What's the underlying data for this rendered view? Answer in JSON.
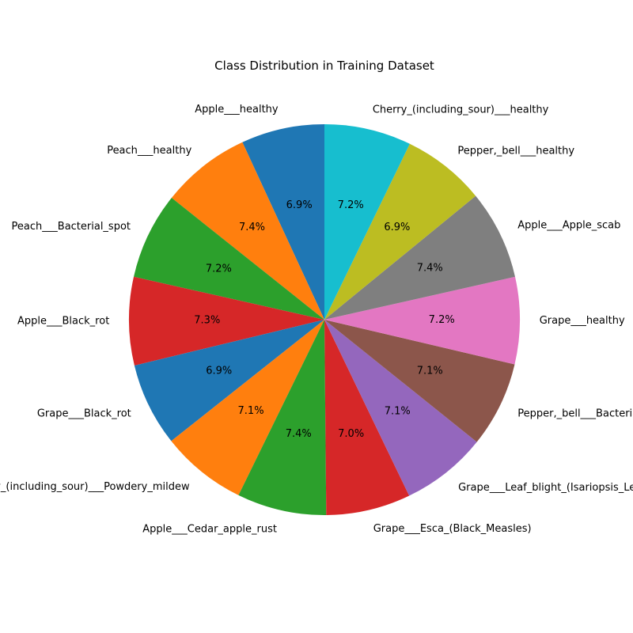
{
  "chart_data": {
    "type": "pie",
    "title": "Class Distribution in Training Dataset",
    "start_angle_deg": 90,
    "direction": "counterclockwise",
    "slices": [
      {
        "label": "Apple___healthy",
        "value": 6.9,
        "pct_text": "6.9%",
        "color": "#1f77b4"
      },
      {
        "label": "Peach___healthy",
        "value": 7.4,
        "pct_text": "7.4%",
        "color": "#ff7f0e"
      },
      {
        "label": "Peach___Bacterial_spot",
        "value": 7.2,
        "pct_text": "7.2%",
        "color": "#2ca02c"
      },
      {
        "label": "Apple___Black_rot",
        "value": 7.3,
        "pct_text": "7.3%",
        "color": "#d62728"
      },
      {
        "label": "Grape___Black_rot",
        "value": 6.9,
        "pct_text": "6.9%",
        "color": "#1f77b4"
      },
      {
        "label": "Cherry_(including_sour)___Powdery_mildew",
        "value": 7.1,
        "pct_text": "7.1%",
        "color": "#ff7f0e"
      },
      {
        "label": "Apple___Cedar_apple_rust",
        "value": 7.4,
        "pct_text": "7.4%",
        "color": "#2ca02c"
      },
      {
        "label": "Grape___Esca_(Black_Measles)",
        "value": 7.0,
        "pct_text": "7.0%",
        "color": "#d62728"
      },
      {
        "label": "Grape___Leaf_blight_(Isariopsis_Leaf_Spot)",
        "value": 7.1,
        "pct_text": "7.1%",
        "color": "#9467bd"
      },
      {
        "label": "Pepper,_bell___Bacterial_spot",
        "value": 7.1,
        "pct_text": "7.1%",
        "color": "#8c564b"
      },
      {
        "label": "Grape___healthy",
        "value": 7.2,
        "pct_text": "7.2%",
        "color": "#e377c2"
      },
      {
        "label": "Apple___Apple_scab",
        "value": 7.4,
        "pct_text": "7.4%",
        "color": "#7f7f7f"
      },
      {
        "label": "Pepper,_bell___healthy",
        "value": 6.9,
        "pct_text": "6.9%",
        "color": "#bcbd22"
      },
      {
        "label": "Cherry_(including_sour)___healthy",
        "value": 7.2,
        "pct_text": "7.2%",
        "color": "#17becf"
      }
    ]
  }
}
